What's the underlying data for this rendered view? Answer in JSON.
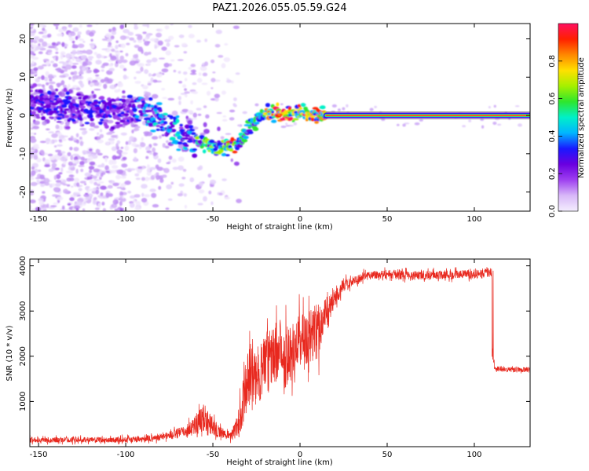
{
  "title": "PAZ1.2026.055.05.59.G24",
  "chart_data": [
    {
      "type": "heatmap",
      "title": "PAZ1.2026.055.05.59.G24",
      "xlabel": "Height of straight line (km)",
      "ylabel": "Frequency (Hz)",
      "xlim": [
        -155,
        132
      ],
      "ylim": [
        -25,
        24
      ],
      "x_ticks": [
        -150,
        -100,
        -50,
        0,
        50,
        100
      ],
      "y_ticks": [
        -20,
        -10,
        0,
        10,
        20
      ],
      "colorbar": {
        "label": "Normalized spectral amplitude",
        "range": [
          0.0,
          1.0
        ],
        "ticks": [
          0.0,
          0.2,
          0.4,
          0.6,
          0.8
        ],
        "colors": [
          "#f4eefe",
          "#d8b8f8",
          "#9e3ff0",
          "#6a00e0",
          "#1a18ff",
          "#00b6ff",
          "#00f0c8",
          "#2ee62e",
          "#a6f000",
          "#ffe000",
          "#ff8800",
          "#ff2000",
          "#ff1060"
        ]
      },
      "ridge": {
        "x": [
          -155,
          -140,
          -130,
          -120,
          -110,
          -100,
          -92,
          -85,
          -78,
          -70,
          -62,
          -55,
          -50,
          -45,
          -40,
          -36,
          -33,
          -30,
          -26,
          -22,
          -18,
          -14,
          -10,
          -6,
          -2,
          2,
          6,
          10,
          15,
          132
        ],
        "freq": [
          3,
          3,
          1,
          2,
          1,
          1.5,
          1.5,
          0,
          -2,
          -4,
          -6,
          -7,
          -8,
          -8,
          -8,
          -8,
          -6,
          -4,
          -2,
          0,
          0.5,
          0.5,
          0.5,
          0.5,
          1,
          1,
          0.5,
          0.2,
          0,
          0
        ]
      },
      "tone": {
        "x_from": 15,
        "x_to": 132,
        "freq": 0
      }
    },
    {
      "type": "line",
      "xlabel": "Height of straight line (km)",
      "ylabel": "SNR (10 * v/v)",
      "xlim": [
        -155,
        132
      ],
      "ylim": [
        0,
        4150
      ],
      "x_ticks": [
        -150,
        -100,
        -50,
        0,
        50,
        100
      ],
      "y_ticks": [
        1000,
        2000,
        3000,
        4000
      ],
      "color": "#e8281e",
      "series": [
        {
          "name": "SNR",
          "x": [
            -155,
            -130,
            -110,
            -90,
            -75,
            -65,
            -60,
            -55,
            -50,
            -45,
            -40,
            -37,
            -35,
            -33,
            -30,
            -27,
            -25,
            -20,
            -15,
            -12,
            -10,
            -5,
            0,
            5,
            10,
            12,
            15,
            20,
            25,
            30,
            40,
            50,
            60,
            70,
            80,
            90,
            100,
            105,
            110,
            111,
            115,
            120,
            132
          ],
          "y": [
            150,
            150,
            150,
            160,
            250,
            350,
            500,
            650,
            450,
            300,
            250,
            350,
            550,
            950,
            1500,
            1700,
            1500,
            1900,
            2000,
            2150,
            2100,
            2100,
            2350,
            2450,
            2550,
            2750,
            2950,
            3300,
            3550,
            3650,
            3800,
            3820,
            3800,
            3780,
            3800,
            3810,
            3820,
            3840,
            3850,
            1700,
            1720,
            1700,
            1700
          ],
          "noise": [
            60,
            60,
            60,
            70,
            90,
            130,
            250,
            300,
            200,
            120,
            100,
            200,
            350,
            500,
            650,
            700,
            650,
            650,
            650,
            650,
            650,
            650,
            650,
            600,
            700,
            500,
            350,
            200,
            150,
            110,
            100,
            100,
            100,
            100,
            100,
            100,
            100,
            100,
            100,
            70,
            60,
            60,
            60
          ]
        }
      ]
    }
  ]
}
